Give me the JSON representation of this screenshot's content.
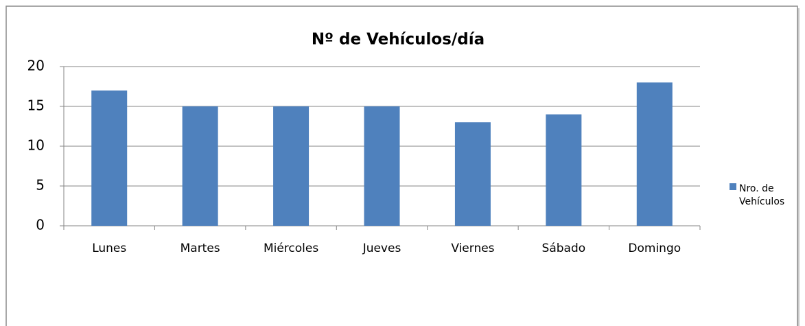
{
  "chart_data": {
    "type": "bar",
    "title": "Nº de Vehículos/día",
    "categories": [
      "Lunes",
      "Martes",
      "Miércoles",
      "Jueves",
      "Viernes",
      "Sábado",
      "Domingo"
    ],
    "series": [
      {
        "name": "Nro. de Vehículos",
        "color": "#4f81bd",
        "values": [
          17,
          15,
          15,
          15,
          13,
          14,
          18
        ]
      }
    ],
    "ylim": [
      0,
      20
    ],
    "yticks": [
      0,
      5,
      10,
      15,
      20
    ],
    "grid": true,
    "legend": "right"
  }
}
